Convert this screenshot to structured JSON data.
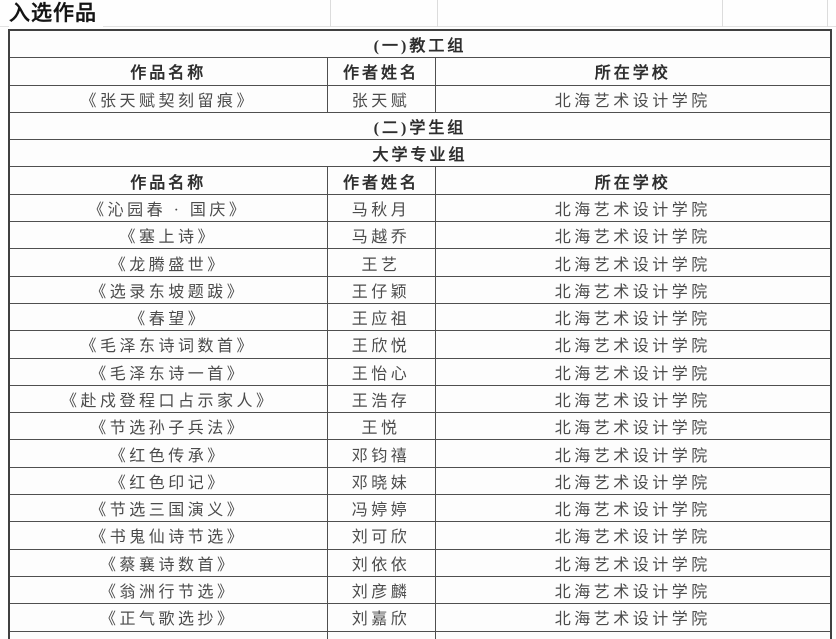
{
  "page": {
    "title": "入选作品"
  },
  "colors": {
    "background": "#ffffff",
    "table_border": "#4f4f4f",
    "outer_border": "#404040",
    "header_text": "#2e2e2e",
    "body_text": "#4b4b4b",
    "faint_gridline": "#dcdcdc"
  },
  "table": {
    "columns": [
      "作品名称",
      "作者姓名",
      "所在学校"
    ],
    "sections": [
      {
        "group_label": "(一)教工组",
        "subgroup_label": "",
        "rows": [
          {
            "title": "《张天赋契刻留痕》",
            "author": "张天赋",
            "school": "北海艺术设计学院"
          }
        ]
      },
      {
        "group_label": "(二)学生组",
        "subgroup_label": "大学专业组",
        "rows": [
          {
            "title": "《沁园春 · 国庆》",
            "author": "马秋月",
            "school": "北海艺术设计学院"
          },
          {
            "title": "《塞上诗》",
            "author": "马越乔",
            "school": "北海艺术设计学院"
          },
          {
            "title": "《龙腾盛世》",
            "author": "王艺",
            "school": "北海艺术设计学院"
          },
          {
            "title": "《选录东坡题跋》",
            "author": "王仔颖",
            "school": "北海艺术设计学院"
          },
          {
            "title": "《春望》",
            "author": "王应祖",
            "school": "北海艺术设计学院"
          },
          {
            "title": "《毛泽东诗词数首》",
            "author": "王欣悦",
            "school": "北海艺术设计学院"
          },
          {
            "title": "《毛泽东诗一首》",
            "author": "王怡心",
            "school": "北海艺术设计学院"
          },
          {
            "title": "《赴戍登程口占示家人》",
            "author": "王浩存",
            "school": "北海艺术设计学院"
          },
          {
            "title": "《节选孙子兵法》",
            "author": "王悦",
            "school": "北海艺术设计学院"
          },
          {
            "title": "《红色传承》",
            "author": "邓钧禧",
            "school": "北海艺术设计学院"
          },
          {
            "title": "《红色印记》",
            "author": "邓晓妹",
            "school": "北海艺术设计学院"
          },
          {
            "title": "《节选三国演义》",
            "author": "冯婷婷",
            "school": "北海艺术设计学院"
          },
          {
            "title": "《书鬼仙诗节选》",
            "author": "刘可欣",
            "school": "北海艺术设计学院"
          },
          {
            "title": "《蔡襄诗数首》",
            "author": "刘依依",
            "school": "北海艺术设计学院"
          },
          {
            "title": "《翁洲行节选》",
            "author": "刘彦麟",
            "school": "北海艺术设计学院"
          },
          {
            "title": "《正气歌选抄》",
            "author": "刘嘉欣",
            "school": "北海艺术设计学院"
          }
        ]
      }
    ]
  }
}
